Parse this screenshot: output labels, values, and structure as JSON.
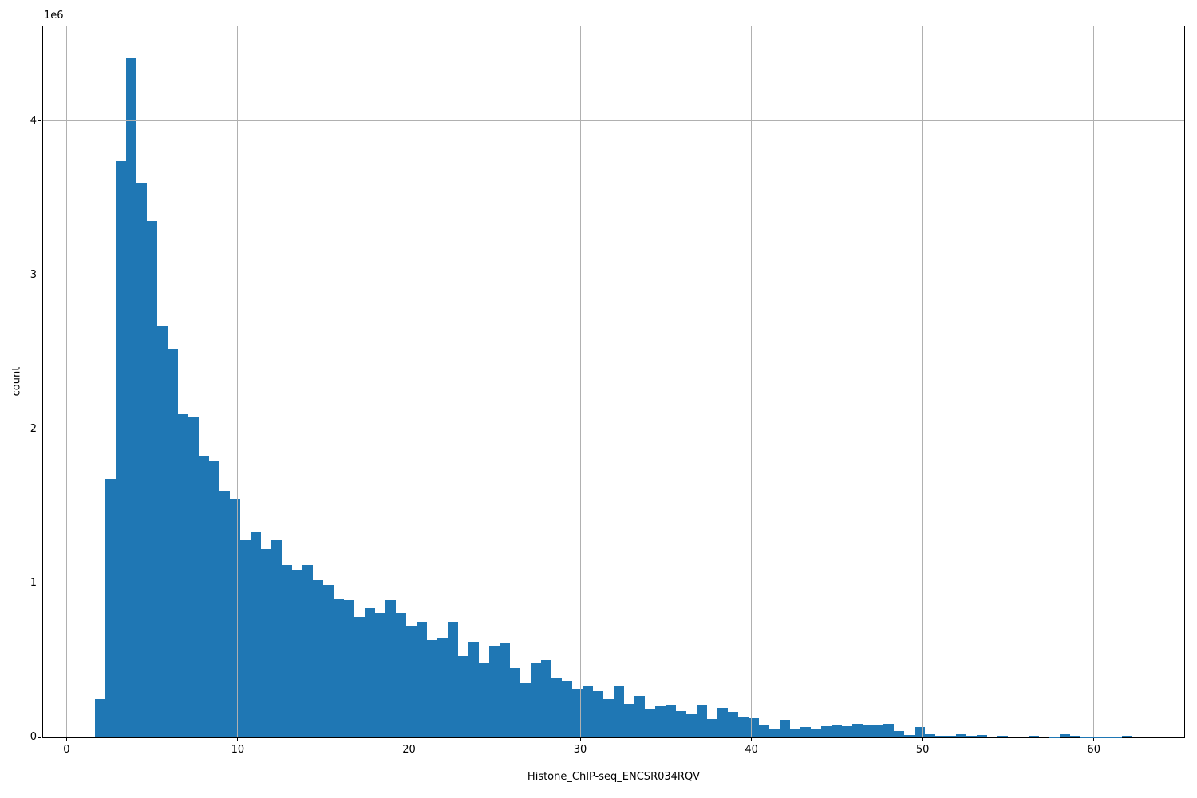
{
  "figure": {
    "offset_label": "1e6",
    "ylabel": "count",
    "xlabel": "Histone_ChIP-seq_ENCSR034RQV"
  },
  "chart_data": {
    "type": "bar",
    "subtype": "histogram",
    "title": "",
    "xlabel": "Histone_ChIP-seq_ENCSR034RQV",
    "ylabel": "count",
    "y_offset_multiplier_label": "1e6",
    "grid": true,
    "grid_color": "#b0b0b0",
    "bar_color": "#1f77b4",
    "background_color": "#ffffff",
    "xlim": [
      -1.37,
      65.28
    ],
    "ylim": [
      0,
      4615000
    ],
    "x_ticks": [
      0,
      10,
      20,
      30,
      40,
      50,
      60
    ],
    "x_tick_labels": [
      "0",
      "10",
      "20",
      "30",
      "40",
      "50",
      "60"
    ],
    "y_ticks": [
      0,
      1000000,
      2000000,
      3000000,
      4000000
    ],
    "y_tick_labels": [
      "0",
      "1",
      "2",
      "3",
      "4"
    ],
    "bin_start": 1.657,
    "bin_width": 0.6059,
    "counts": [
      250000,
      1680000,
      3740000,
      4410000,
      3600000,
      3350000,
      2670000,
      2520000,
      2100000,
      2080000,
      1830000,
      1790000,
      1600000,
      1550000,
      1280000,
      1330000,
      1220000,
      1280000,
      1120000,
      1090000,
      1120000,
      1020000,
      990000,
      900000,
      890000,
      780000,
      840000,
      810000,
      890000,
      810000,
      720000,
      750000,
      630000,
      640000,
      750000,
      530000,
      620000,
      480000,
      590000,
      610000,
      450000,
      350000,
      480000,
      500000,
      390000,
      370000,
      310000,
      330000,
      300000,
      250000,
      330000,
      220000,
      270000,
      180000,
      200000,
      210000,
      170000,
      150000,
      205000,
      120000,
      190000,
      165000,
      130000,
      125000,
      80000,
      50000,
      115000,
      55000,
      65000,
      58000,
      72000,
      78000,
      72000,
      86000,
      78000,
      83000,
      86000,
      43000,
      17000,
      70000,
      21000,
      8000,
      8000,
      22000,
      9000,
      17000,
      5000,
      10000,
      4000,
      4000,
      9000,
      4000,
      2000,
      23000,
      10000,
      2000,
      1000,
      1000,
      2000,
      9000
    ]
  }
}
